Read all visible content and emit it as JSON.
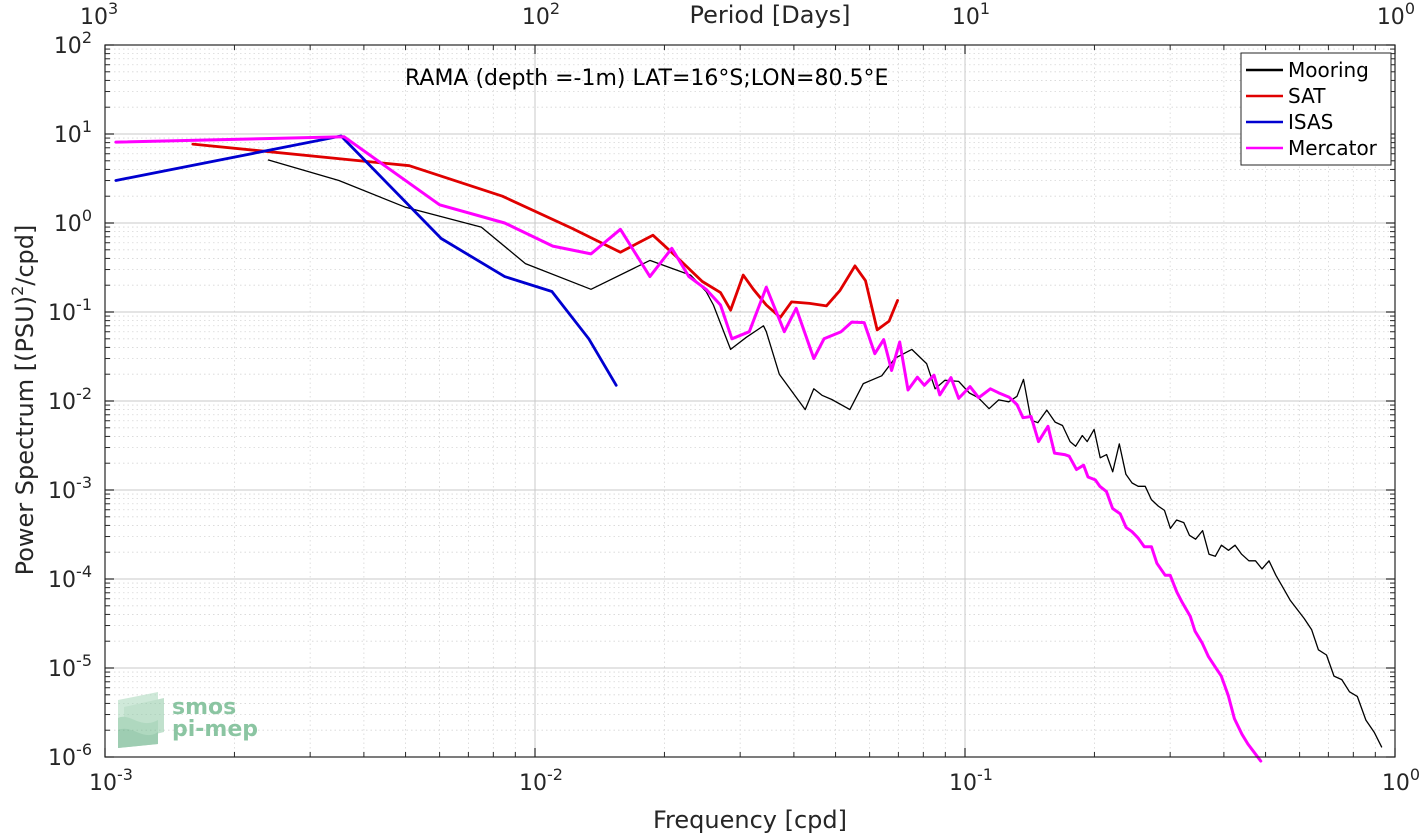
{
  "chart_data": {
    "type": "line",
    "title": "RAMA (depth =-1m) LAT=16°S;LON=80.5°E",
    "xlabel": "Frequency [cpd]",
    "ylabel": "Power Spectrum [(PSU)",
    "ylabel_sup": "2",
    "ylabel_tail": "/cpd]",
    "top_xlabel": "Period [Days]",
    "x_scale": "log",
    "y_scale": "log",
    "xlim": [
      0.001,
      1
    ],
    "ylim": [
      1e-06,
      100
    ],
    "grid": true,
    "legend_position": "top-right",
    "x_ticks": [
      {
        "base": "10",
        "exp": "-3"
      },
      {
        "base": "10",
        "exp": "-2"
      },
      {
        "base": "10",
        "exp": "-1"
      },
      {
        "base": "10",
        "exp": "0"
      }
    ],
    "top_x_ticks": [
      {
        "base": "10",
        "exp": "3"
      },
      {
        "base": "10",
        "exp": "2"
      },
      {
        "base": "10",
        "exp": "1"
      },
      {
        "base": "10",
        "exp": "0"
      }
    ],
    "y_ticks": [
      {
        "base": "10",
        "exp": "-6"
      },
      {
        "base": "10",
        "exp": "-5"
      },
      {
        "base": "10",
        "exp": "-4"
      },
      {
        "base": "10",
        "exp": "-3"
      },
      {
        "base": "10",
        "exp": "-2"
      },
      {
        "base": "10",
        "exp": "-1"
      },
      {
        "base": "10",
        "exp": "0"
      },
      {
        "base": "10",
        "exp": "1"
      },
      {
        "base": "10",
        "exp": "2"
      }
    ],
    "series": [
      {
        "name": "Mooring",
        "color": "#000000",
        "width": 1.3,
        "x": [
          0.0024,
          0.0035,
          0.005,
          0.0075,
          0.0095,
          0.0135,
          0.0185,
          0.023,
          0.025,
          0.026,
          0.0285,
          0.031,
          0.034,
          0.0345,
          0.037,
          0.0425,
          0.0445,
          0.0465,
          0.049,
          0.054,
          0.058,
          0.064,
          0.0687,
          0.0752,
          0.0814,
          0.0852,
          0.0898,
          0.0967,
          0.1024,
          0.1074,
          0.1138,
          0.1198,
          0.1264,
          0.1321,
          0.1368,
          0.1425,
          0.1477,
          0.155,
          0.162,
          0.1686,
          0.1756,
          0.1808,
          0.1874,
          0.1924,
          0.1996,
          0.2063,
          0.2134,
          0.2205,
          0.2285,
          0.2367,
          0.2447,
          0.2528,
          0.2624,
          0.2713,
          0.2815,
          0.2911,
          0.3004,
          0.3105,
          0.3228,
          0.3325,
          0.3438,
          0.3569,
          0.3693,
          0.3821,
          0.3947,
          0.4101,
          0.4248,
          0.4397,
          0.4574,
          0.4738,
          0.4905,
          0.5092,
          0.5286,
          0.5482,
          0.5703,
          0.5915,
          0.6151,
          0.6397,
          0.6634,
          0.6929,
          0.7215,
          0.7521,
          0.7836,
          0.8171,
          0.8556,
          0.8947,
          0.9307
        ],
        "y": [
          5.1,
          3.0,
          1.5,
          0.9,
          0.35,
          0.18,
          0.38,
          0.26,
          0.17,
          0.12,
          0.038,
          0.052,
          0.07,
          0.06,
          0.02,
          0.008,
          0.0137,
          0.0116,
          0.0104,
          0.008,
          0.0157,
          0.0192,
          0.0302,
          0.038,
          0.0263,
          0.0137,
          0.0171,
          0.0166,
          0.0123,
          0.0109,
          0.0082,
          0.0103,
          0.0098,
          0.0113,
          0.0175,
          0.0061,
          0.0057,
          0.0079,
          0.0058,
          0.0053,
          0.0035,
          0.0031,
          0.0041,
          0.0035,
          0.0048,
          0.0023,
          0.0025,
          0.0016,
          0.0033,
          0.0015,
          0.0012,
          0.0011,
          0.0011,
          0.00078,
          0.00066,
          0.00059,
          0.00037,
          0.00046,
          0.00043,
          0.00031,
          0.00028,
          0.00035,
          0.00019,
          0.00018,
          0.00024,
          0.00021,
          0.00024,
          0.00019,
          0.00016,
          0.00016,
          0.00013,
          0.00016,
          0.00011,
          8.1e-05,
          5.8e-05,
          4.6e-05,
          3.6e-05,
          2.7e-05,
          1.6e-05,
          1.4e-05,
          8.1e-06,
          7.4e-06,
          5.4e-06,
          4.8e-06,
          2.6e-06,
          1.9e-06,
          1.3e-06
        ]
      },
      {
        "name": "SAT",
        "color": "#e00000",
        "width": 2.8,
        "x": [
          0.0016,
          0.0051,
          0.0084,
          0.0122,
          0.0158,
          0.0188,
          0.0213,
          0.0245,
          0.027,
          0.0285,
          0.0305,
          0.0322,
          0.0345,
          0.0372,
          0.0395,
          0.0435,
          0.0476,
          0.0512,
          0.0555,
          0.0587,
          0.0625,
          0.0666,
          0.0697
        ],
        "y": [
          7.7,
          4.4,
          2.0,
          0.87,
          0.47,
          0.73,
          0.42,
          0.22,
          0.165,
          0.105,
          0.26,
          0.18,
          0.12,
          0.087,
          0.13,
          0.125,
          0.117,
          0.175,
          0.33,
          0.225,
          0.063,
          0.079,
          0.135
        ]
      },
      {
        "name": "ISAS",
        "color": "#0000d0",
        "width": 2.8,
        "x": [
          0.00106,
          0.00354,
          0.00605,
          0.0085,
          0.01095,
          0.01334,
          0.01545
        ],
        "y": [
          3.0,
          9.5,
          0.67,
          0.25,
          0.17,
          0.05,
          0.015
        ]
      },
      {
        "name": "Mercator",
        "color": "#ff00ff",
        "width": 3.0,
        "x": [
          0.00106,
          0.0036,
          0.006,
          0.0085,
          0.011,
          0.0135,
          0.0158,
          0.0185,
          0.0208,
          0.0228,
          0.025,
          0.027,
          0.0287,
          0.0315,
          0.0345,
          0.038,
          0.0405,
          0.0445,
          0.047,
          0.0515,
          0.0545,
          0.0583,
          0.0617,
          0.0647,
          0.0675,
          0.0705,
          0.0737,
          0.0775,
          0.0804,
          0.0847,
          0.0874,
          0.0928,
          0.0967,
          0.1027,
          0.1076,
          0.1146,
          0.1196,
          0.1267,
          0.1321,
          0.1364,
          0.1425,
          0.1482,
          0.156,
          0.1615,
          0.1705,
          0.1747,
          0.1817,
          0.1887,
          0.1932,
          0.2009,
          0.2058,
          0.2133,
          0.2204,
          0.2296,
          0.2369,
          0.2446,
          0.2524,
          0.2612,
          0.2714,
          0.2794,
          0.2921,
          0.3,
          0.311,
          0.3203,
          0.3341,
          0.3427,
          0.3564,
          0.3683,
          0.3818,
          0.3944,
          0.4095,
          0.4232,
          0.4407,
          0.4548,
          0.4722,
          0.4873
        ],
        "y": [
          8.1,
          9.3,
          1.6,
          1.0,
          0.55,
          0.45,
          0.85,
          0.25,
          0.52,
          0.25,
          0.18,
          0.12,
          0.05,
          0.06,
          0.19,
          0.06,
          0.11,
          0.03,
          0.05,
          0.06,
          0.077,
          0.076,
          0.034,
          0.049,
          0.022,
          0.046,
          0.0133,
          0.0185,
          0.015,
          0.0195,
          0.0117,
          0.0183,
          0.0107,
          0.0145,
          0.0109,
          0.0137,
          0.0124,
          0.011,
          0.0091,
          0.0065,
          0.0067,
          0.0035,
          0.0052,
          0.0026,
          0.0025,
          0.0024,
          0.0017,
          0.0019,
          0.0014,
          0.0013,
          0.0011,
          0.00096,
          0.00062,
          0.00054,
          0.00038,
          0.00034,
          0.00029,
          0.00023,
          0.00023,
          0.00015,
          0.00011,
          0.00011,
          7.1e-05,
          5.4e-05,
          3.8e-05,
          2.6e-05,
          1.9e-05,
          1.34e-05,
          1.03e-05,
          8.1e-06,
          4.9e-06,
          2.7e-06,
          1.8e-06,
          1.4e-06,
          1.1e-06,
          9e-07
        ]
      }
    ]
  },
  "logo": {
    "line1": "smos",
    "line2": "pi-mep",
    "color": "#7fbf98"
  }
}
